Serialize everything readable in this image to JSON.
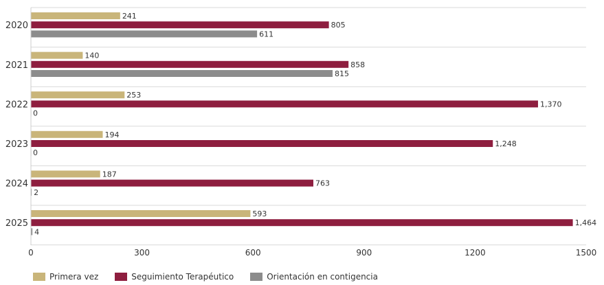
{
  "chart_data": {
    "type": "bar",
    "orientation": "horizontal",
    "categories": [
      "2020",
      "2021",
      "2022",
      "2023",
      "2024",
      "2025"
    ],
    "series": [
      {
        "name": "Primera vez",
        "color": "#C9B57A",
        "values": [
          241,
          140,
          253,
          194,
          187,
          593
        ]
      },
      {
        "name": "Seguimiento Terapéutico",
        "color": "#8E1E3F",
        "values": [
          805,
          858,
          1370,
          1248,
          763,
          1464
        ]
      },
      {
        "name": "Orientación en contigencia",
        "color": "#8C8C8C",
        "values": [
          611,
          815,
          0,
          0,
          2,
          4
        ]
      }
    ],
    "value_labels": [
      [
        "241",
        "805",
        "611"
      ],
      [
        "140",
        "858",
        "815"
      ],
      [
        "253",
        "1,370",
        "0"
      ],
      [
        "194",
        "1,248",
        "0"
      ],
      [
        "187",
        "763",
        "2"
      ],
      [
        "593",
        "1,464",
        "4"
      ]
    ],
    "xticks": [
      "0",
      "300",
      "600",
      "900",
      "1200",
      "1500"
    ],
    "xlim": [
      0,
      1500
    ],
    "grid": "horizontal separators",
    "legend": "bottom-left"
  }
}
